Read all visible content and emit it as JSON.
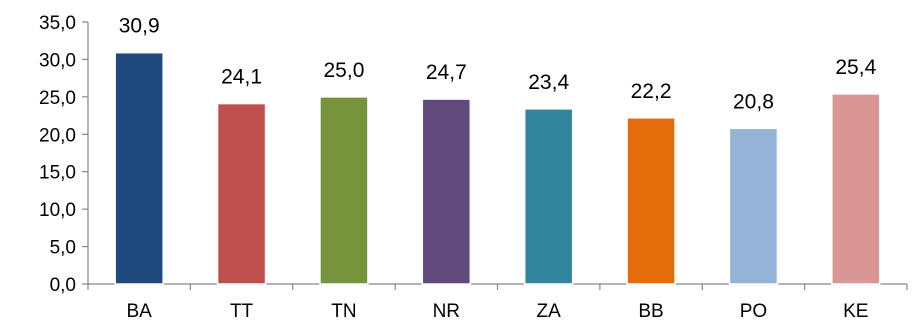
{
  "chart_data": {
    "type": "bar",
    "title": "",
    "xlabel": "",
    "ylabel": "",
    "categories": [
      "BA",
      "TT",
      "TN",
      "NR",
      "ZA",
      "BB",
      "PO",
      "KE"
    ],
    "values": [
      30.9,
      24.1,
      25.0,
      24.7,
      23.4,
      22.2,
      20.8,
      25.4
    ],
    "data_labels": [
      "30,9",
      "24,1",
      "25,0",
      "24,7",
      "23,4",
      "22,2",
      "20,8",
      "25,4"
    ],
    "ylim": [
      0,
      35
    ],
    "yticks": [
      0,
      5,
      10,
      15,
      20,
      25,
      30,
      35
    ],
    "ytick_labels": [
      "0,0",
      "5,0",
      "10,0",
      "15,0",
      "20,0",
      "25,0",
      "30,0",
      "35,0"
    ],
    "bar_colors": [
      "#1f497d",
      "#c0504d",
      "#77933c",
      "#604a7b",
      "#31859c",
      "#e46c0a",
      "#95b3d7",
      "#d99694"
    ],
    "axis_color": "#868686",
    "grid": false,
    "legend": "none"
  }
}
